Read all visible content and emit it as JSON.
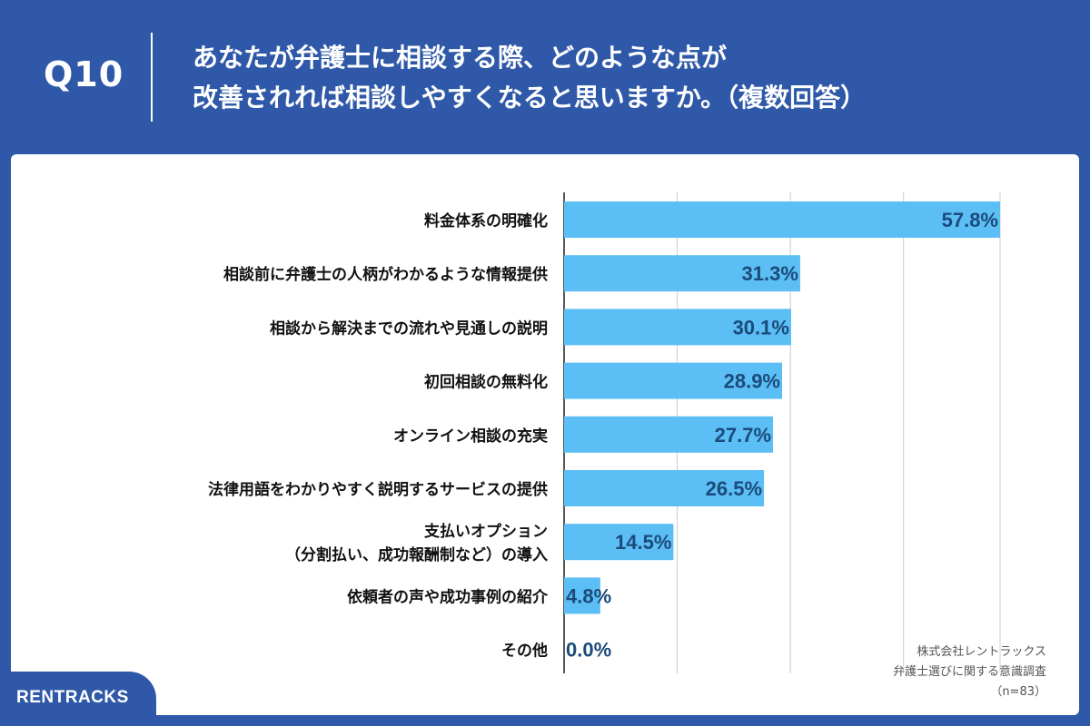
{
  "header": {
    "question_number": "Q10",
    "title_line1": "あなたが弁護士に相談する際、どのような点が",
    "title_line2": "改善されれば相談しやすくなると思いますか。（複数回答）"
  },
  "footnote": {
    "company": "株式会社レントラックス",
    "survey": "弁護士選びに関する意識調査",
    "sample": "（n=83）"
  },
  "logo": {
    "text": "RENTRACKS"
  },
  "colors": {
    "background": "#2f59a8",
    "bar": "#5bbef5",
    "value_label": "#1b4b7a"
  },
  "chart_data": {
    "type": "bar",
    "orientation": "horizontal",
    "categories": [
      [
        "料金体系の明確化"
      ],
      [
        "相談前に弁護士の人柄がわかるような情報提供"
      ],
      [
        "相談から解決までの流れや見通しの説明"
      ],
      [
        "初回相談の無料化"
      ],
      [
        "オンライン相談の充実"
      ],
      [
        "法律用語をわかりやすく説明するサービスの提供"
      ],
      [
        "支払いオプション",
        "（分割払い、成功報酬制など）の導入"
      ],
      [
        "依頼者の声や成功事例の紹介"
      ],
      [
        "その他"
      ]
    ],
    "values": [
      57.8,
      31.3,
      30.1,
      28.9,
      27.7,
      26.5,
      14.5,
      4.8,
      0.0
    ],
    "value_labels": [
      "57.8%",
      "31.3%",
      "30.1%",
      "28.9%",
      "27.7%",
      "26.5%",
      "14.5%",
      "4.8%",
      "0.0%"
    ],
    "xlim": [
      0,
      60
    ],
    "grid": true
  }
}
